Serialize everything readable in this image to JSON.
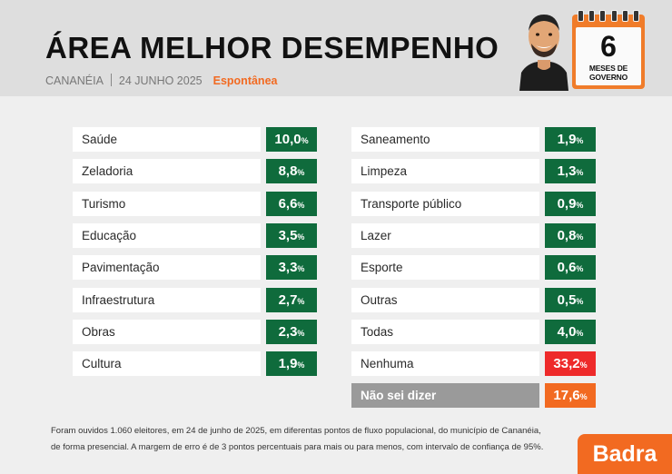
{
  "header": {
    "title": "ÁREA MELHOR DESEMPENHO",
    "location": "CANANÉIA",
    "date": "24 JUNHO 2025",
    "tag": "Espontânea"
  },
  "calendar": {
    "number": "6",
    "label": "MESES DE GOVERNO"
  },
  "colors": {
    "green": "#0f6b3c",
    "red": "#ee2a2a",
    "orange": "#f26a21",
    "gray": "#9a9a9a"
  },
  "chart_data": {
    "type": "table",
    "unit": "%",
    "rows": [
      {
        "label": "Saúde",
        "value": "10,0",
        "color": "green"
      },
      {
        "label": "Zeladoria",
        "value": "8,8",
        "color": "green"
      },
      {
        "label": "Turismo",
        "value": "6,6",
        "color": "green"
      },
      {
        "label": "Educação",
        "value": "3,5",
        "color": "green"
      },
      {
        "label": "Pavimentação",
        "value": "3,3",
        "color": "green"
      },
      {
        "label": "Infraestrutura",
        "value": "2,7",
        "color": "green"
      },
      {
        "label": "Obras",
        "value": "2,3",
        "color": "green"
      },
      {
        "label": "Cultura",
        "value": "1,9",
        "color": "green"
      },
      {
        "label": "Saneamento",
        "value": "1,9",
        "color": "green"
      },
      {
        "label": "Limpeza",
        "value": "1,3",
        "color": "green"
      },
      {
        "label": "Transporte público",
        "value": "0,9",
        "color": "green"
      },
      {
        "label": "Lazer",
        "value": "0,8",
        "color": "green"
      },
      {
        "label": "Esporte",
        "value": "0,6",
        "color": "green"
      },
      {
        "label": "Outras",
        "value": "0,5",
        "color": "green"
      },
      {
        "label": "Todas",
        "value": "4,0",
        "color": "green"
      },
      {
        "label": "Nenhuma",
        "value": "33,2",
        "color": "red"
      },
      {
        "label": "Não sei dizer",
        "value": "17,6",
        "color": "orange",
        "label_style": "gray"
      }
    ]
  },
  "footnote": {
    "line1": "Foram ouvidos 1.060 eleitores, em 24 de junho de 2025, em diferentas pontos de fluxo populacional, do município de Cananéia,",
    "line2": "de forma presencial. A margem de erro é de 3 pontos percentuais para mais ou para menos, com intervalo de confiança de 95%."
  },
  "logo": {
    "text": "Badra"
  }
}
